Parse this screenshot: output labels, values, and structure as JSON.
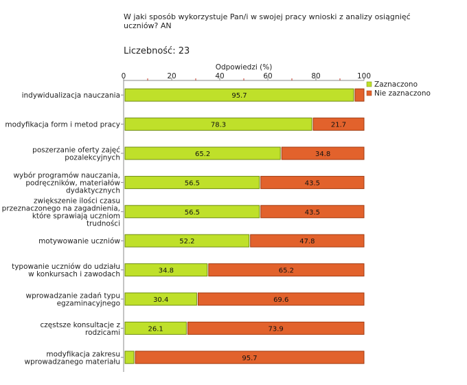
{
  "title": "W jaki sposób wykorzystuje Pan/i w swojej pracy wnioski z analizy osiągnięć uczniów? AN",
  "count_label": "Liczebność:",
  "count_value": "23",
  "chart_data": {
    "type": "bar",
    "orientation": "horizontal",
    "stacked": true,
    "xlabel": "Odpowiedzi (%)",
    "xlim": [
      0,
      100
    ],
    "ticks": [
      0,
      20,
      40,
      60,
      80,
      100
    ],
    "categories": [
      [
        "indywidualizacja nauczania"
      ],
      [
        "modyfikacja form i metod pracy"
      ],
      [
        "poszerzanie oferty zajęć",
        "pozalekcyjnych"
      ],
      [
        "wybór programów nauczania,",
        "podręczników, materiałów",
        "dydaktycznych"
      ],
      [
        "zwiększenie ilości czasu",
        "przeznaczonego na zagadnienia,",
        "które sprawiają uczniom",
        "trudności"
      ],
      [
        "motywowanie uczniów"
      ],
      [
        "typowanie uczniów do udziału",
        "w konkursach i zawodach"
      ],
      [
        "wprowadzanie zadań typu",
        "egzaminacyjnego"
      ],
      [
        "częstsze konsultacje z",
        "rodzicami"
      ],
      [
        "modyfikacja zakresu",
        "wprowadzanego materiału"
      ]
    ],
    "series": [
      {
        "name": "Zaznaczono",
        "color": "#bfe02a",
        "stroke": "#6f8c10",
        "values": [
          95.7,
          78.3,
          65.2,
          56.5,
          56.5,
          52.2,
          34.8,
          30.4,
          26.1,
          4.3
        ],
        "labels": [
          "95.7",
          "78.3",
          "65.2",
          "56.5",
          "56.5",
          "52.2",
          "34.8",
          "30.4",
          "26.1",
          ""
        ]
      },
      {
        "name": "Nie zaznaczono",
        "color": "#e2622c",
        "stroke": "#a03a10",
        "values": [
          4.3,
          21.7,
          34.8,
          43.5,
          43.5,
          47.8,
          65.2,
          69.6,
          73.9,
          95.7
        ],
        "labels": [
          "",
          "21.7",
          "34.8",
          "43.5",
          "43.5",
          "47.8",
          "65.2",
          "69.6",
          "73.9",
          "95.7"
        ]
      }
    ]
  }
}
